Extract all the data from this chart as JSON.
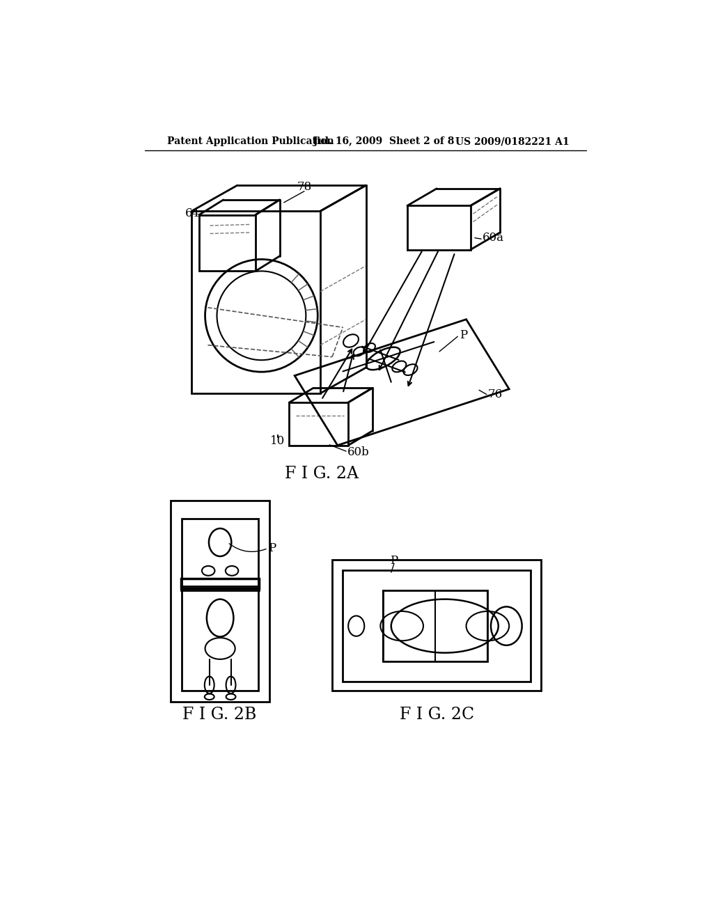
{
  "bg_color": "#ffffff",
  "line_color": "#000000",
  "header_left": "Patent Application Publication",
  "header_mid": "Jul. 16, 2009  Sheet 2 of 8",
  "header_right": "US 2009/0182221 A1",
  "fig2a_label": "F I G. 2A",
  "fig2b_label": "F I G. 2B",
  "fig2c_label": "F I G. 2C",
  "label_78": "78",
  "label_64": "64",
  "label_60a": "60a",
  "label_60b": "60b",
  "label_10": "10",
  "label_76": "76",
  "label_P_2a": "P",
  "label_P_2b": "P",
  "label_P_2c": "P"
}
